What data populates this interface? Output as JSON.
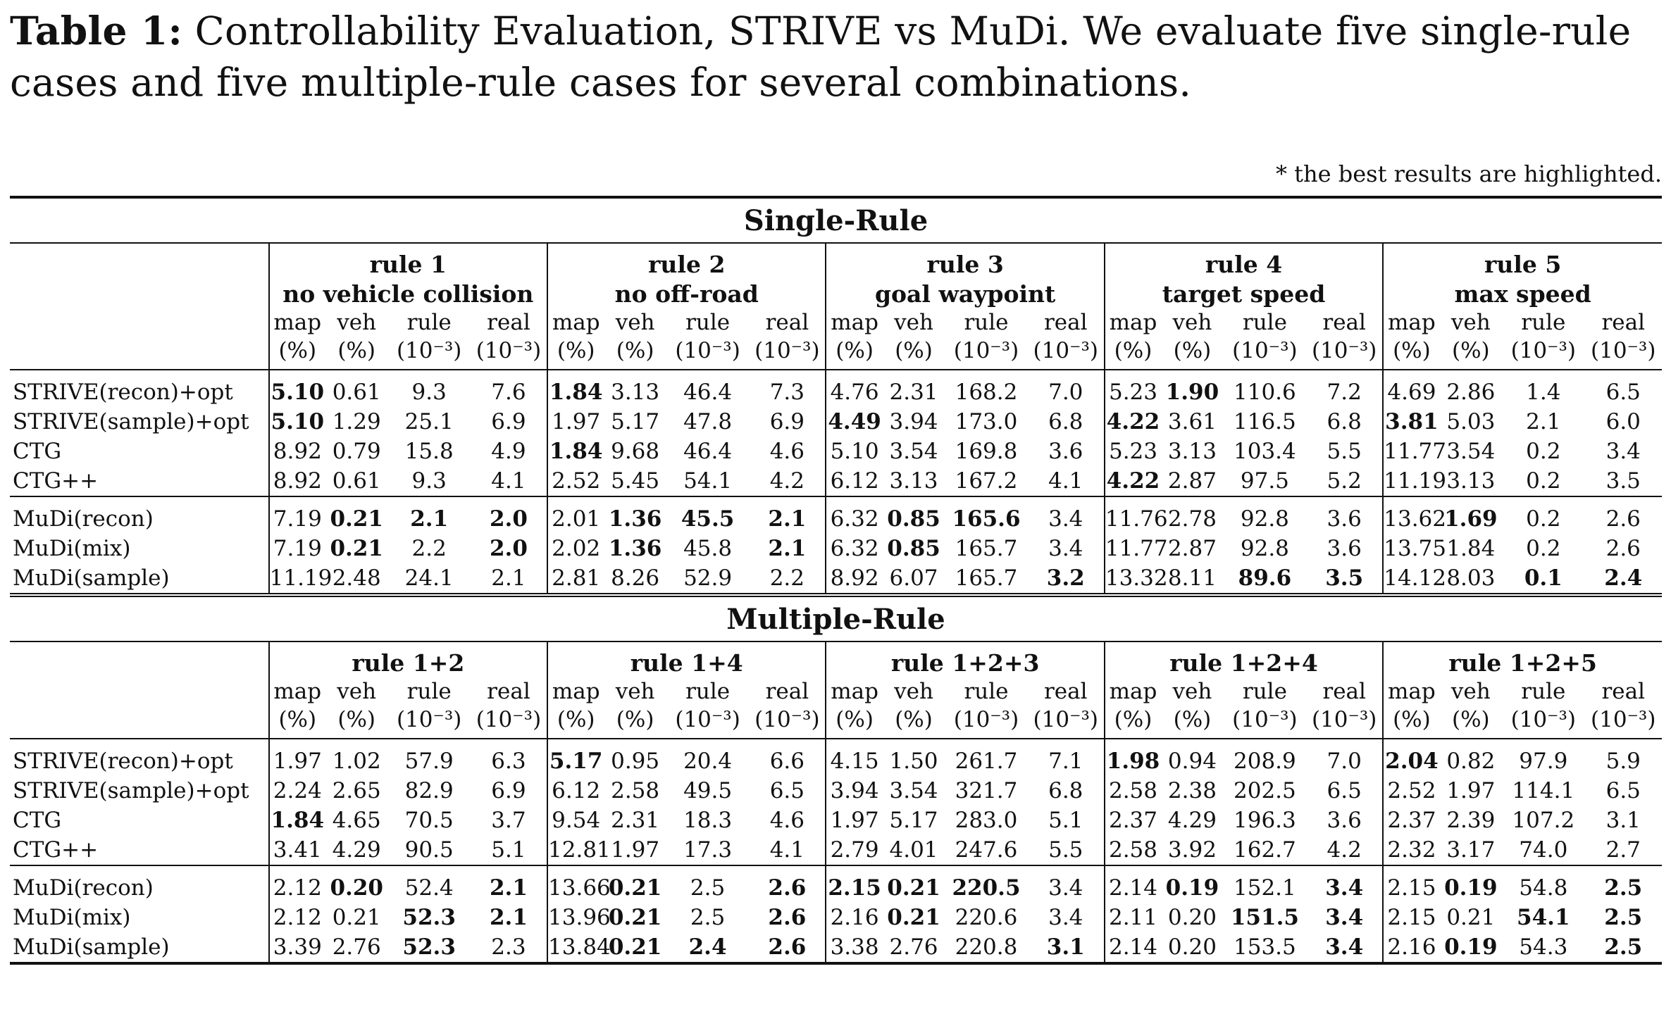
{
  "caption": {
    "label": "Table 1:",
    "text": "Controllability Evaluation, STRIVE vs MuDi. We evaluate five single-rule cases and five multiple-rule cases for several combinations."
  },
  "note": "* the best results are highlighted.",
  "col_headers": {
    "names": [
      "map",
      "veh",
      "rule",
      "real",
      "map",
      "veh",
      "rule",
      "real",
      "map",
      "veh",
      "rule",
      "real",
      "map",
      "veh",
      "rule",
      "real",
      "map",
      "veh",
      "rule",
      "real"
    ],
    "units": [
      "(%)",
      "(%)",
      "(10⁻³)",
      "(10⁻³)",
      "(%)",
      "(%)",
      "(10⁻³)",
      "(10⁻³)",
      "(%)",
      "(%)",
      "(10⁻³)",
      "(10⁻³)",
      "(%)",
      "(%)",
      "(10⁻³)",
      "(10⁻³)",
      "(%)",
      "(%)",
      "(10⁻³)",
      "(10⁻³)"
    ]
  },
  "sections": [
    {
      "title": "Single-Rule",
      "groups": [
        {
          "title": "rule 1",
          "subtitle": "no vehicle collision"
        },
        {
          "title": "rule 2",
          "subtitle": "no off-road"
        },
        {
          "title": "rule 3",
          "subtitle": "goal waypoint"
        },
        {
          "title": "rule 4",
          "subtitle": "target speed"
        },
        {
          "title": "rule 5",
          "subtitle": "max speed"
        }
      ],
      "blocks": [
        [
          {
            "method": "STRIVE(recon)+opt",
            "values": [
              "5.10",
              "0.61",
              "9.3",
              "7.6",
              "1.84",
              "3.13",
              "46.4",
              "7.3",
              "4.76",
              "2.31",
              "168.2",
              "7.0",
              "5.23",
              "1.90",
              "110.6",
              "7.2",
              "4.69",
              "2.86",
              "1.4",
              "6.5"
            ],
            "bold": [
              0,
              4,
              13
            ]
          },
          {
            "method": "STRIVE(sample)+opt",
            "values": [
              "5.10",
              "1.29",
              "25.1",
              "6.9",
              "1.97",
              "5.17",
              "47.8",
              "6.9",
              "4.49",
              "3.94",
              "173.0",
              "6.8",
              "4.22",
              "3.61",
              "116.5",
              "6.8",
              "3.81",
              "5.03",
              "2.1",
              "6.0"
            ],
            "bold": [
              0,
              8,
              12,
              16
            ]
          },
          {
            "method": "CTG",
            "values": [
              "8.92",
              "0.79",
              "15.8",
              "4.9",
              "1.84",
              "9.68",
              "46.4",
              "4.6",
              "5.10",
              "3.54",
              "169.8",
              "3.6",
              "5.23",
              "3.13",
              "103.4",
              "5.5",
              "11.77",
              "3.54",
              "0.2",
              "3.4"
            ],
            "bold": [
              4
            ]
          },
          {
            "method": "CTG++",
            "values": [
              "8.92",
              "0.61",
              "9.3",
              "4.1",
              "2.52",
              "5.45",
              "54.1",
              "4.2",
              "6.12",
              "3.13",
              "167.2",
              "4.1",
              "4.22",
              "2.87",
              "97.5",
              "5.2",
              "11.19",
              "3.13",
              "0.2",
              "3.5"
            ],
            "bold": [
              12
            ]
          }
        ],
        [
          {
            "method": "MuDi(recon)",
            "values": [
              "7.19",
              "0.21",
              "2.1",
              "2.0",
              "2.01",
              "1.36",
              "45.5",
              "2.1",
              "6.32",
              "0.85",
              "165.6",
              "3.4",
              "11.76",
              "2.78",
              "92.8",
              "3.6",
              "13.62",
              "1.69",
              "0.2",
              "2.6"
            ],
            "bold": [
              1,
              2,
              3,
              5,
              6,
              7,
              9,
              10,
              17
            ]
          },
          {
            "method": "MuDi(mix)",
            "values": [
              "7.19",
              "0.21",
              "2.2",
              "2.0",
              "2.02",
              "1.36",
              "45.8",
              "2.1",
              "6.32",
              "0.85",
              "165.7",
              "3.4",
              "11.77",
              "2.87",
              "92.8",
              "3.6",
              "13.75",
              "1.84",
              "0.2",
              "2.6"
            ],
            "bold": [
              1,
              3,
              5,
              7,
              9
            ]
          },
          {
            "method": "MuDi(sample)",
            "values": [
              "11.19",
              "2.48",
              "24.1",
              "2.1",
              "2.81",
              "8.26",
              "52.9",
              "2.2",
              "8.92",
              "6.07",
              "165.7",
              "3.2",
              "13.32",
              "8.11",
              "89.6",
              "3.5",
              "14.12",
              "8.03",
              "0.1",
              "2.4"
            ],
            "bold": [
              11,
              14,
              15,
              18,
              19
            ]
          }
        ]
      ]
    },
    {
      "title": "Multiple-Rule",
      "groups": [
        {
          "title": "rule 1+2"
        },
        {
          "title": "rule 1+4"
        },
        {
          "title": "rule 1+2+3"
        },
        {
          "title": "rule 1+2+4"
        },
        {
          "title": "rule 1+2+5"
        }
      ],
      "blocks": [
        [
          {
            "method": "STRIVE(recon)+opt",
            "values": [
              "1.97",
              "1.02",
              "57.9",
              "6.3",
              "5.17",
              "0.95",
              "20.4",
              "6.6",
              "4.15",
              "1.50",
              "261.7",
              "7.1",
              "1.98",
              "0.94",
              "208.9",
              "7.0",
              "2.04",
              "0.82",
              "97.9",
              "5.9"
            ],
            "bold": [
              4,
              12,
              16
            ]
          },
          {
            "method": "STRIVE(sample)+opt",
            "values": [
              "2.24",
              "2.65",
              "82.9",
              "6.9",
              "6.12",
              "2.58",
              "49.5",
              "6.5",
              "3.94",
              "3.54",
              "321.7",
              "6.8",
              "2.58",
              "2.38",
              "202.5",
              "6.5",
              "2.52",
              "1.97",
              "114.1",
              "6.5"
            ],
            "bold": []
          },
          {
            "method": "CTG",
            "values": [
              "1.84",
              "4.65",
              "70.5",
              "3.7",
              "9.54",
              "2.31",
              "18.3",
              "4.6",
              "1.97",
              "5.17",
              "283.0",
              "5.1",
              "2.37",
              "4.29",
              "196.3",
              "3.6",
              "2.37",
              "2.39",
              "107.2",
              "3.1"
            ],
            "bold": [
              0
            ]
          },
          {
            "method": "CTG++",
            "values": [
              "3.41",
              "4.29",
              "90.5",
              "5.1",
              "12.81",
              "1.97",
              "17.3",
              "4.1",
              "2.79",
              "4.01",
              "247.6",
              "5.5",
              "2.58",
              "3.92",
              "162.7",
              "4.2",
              "2.32",
              "3.17",
              "74.0",
              "2.7"
            ],
            "bold": []
          }
        ],
        [
          {
            "method": "MuDi(recon)",
            "values": [
              "2.12",
              "0.20",
              "52.4",
              "2.1",
              "13.66",
              "0.21",
              "2.5",
              "2.6",
              "2.15",
              "0.21",
              "220.5",
              "3.4",
              "2.14",
              "0.19",
              "152.1",
              "3.4",
              "2.15",
              "0.19",
              "54.8",
              "2.5"
            ],
            "bold": [
              1,
              3,
              5,
              7,
              8,
              9,
              10,
              13,
              15,
              17,
              19
            ]
          },
          {
            "method": "MuDi(mix)",
            "values": [
              "2.12",
              "0.21",
              "52.3",
              "2.1",
              "13.96",
              "0.21",
              "2.5",
              "2.6",
              "2.16",
              "0.21",
              "220.6",
              "3.4",
              "2.11",
              "0.20",
              "151.5",
              "3.4",
              "2.15",
              "0.21",
              "54.1",
              "2.5"
            ],
            "bold": [
              2,
              3,
              5,
              7,
              9,
              14,
              15,
              18,
              19
            ]
          },
          {
            "method": "MuDi(sample)",
            "values": [
              "3.39",
              "2.76",
              "52.3",
              "2.3",
              "13.84",
              "0.21",
              "2.4",
              "2.6",
              "3.38",
              "2.76",
              "220.8",
              "3.1",
              "2.14",
              "0.20",
              "153.5",
              "3.4",
              "2.16",
              "0.19",
              "54.3",
              "2.5"
            ],
            "bold": [
              2,
              5,
              6,
              7,
              11,
              15,
              17,
              19
            ]
          }
        ]
      ]
    }
  ]
}
